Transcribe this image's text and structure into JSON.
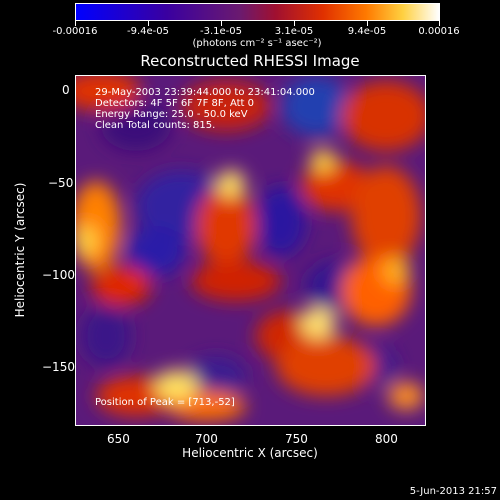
{
  "colorbar": {
    "labels": [
      "-0.00016",
      "-9.4e-05",
      "-3.1e-05",
      "3.1e-05",
      "9.4e-05",
      "0.00016"
    ],
    "units": "(photons cm⁻² s⁻¹ asec⁻²)"
  },
  "title": "Reconstructed RHESSI Image",
  "annotations": {
    "line1": "29-May-2003 23:39:44.000 to 23:41:04.000",
    "line2": "Detectors: 4F 5F 6F 7F 8F, Att 0",
    "line3": "Energy Range: 25.0 - 50.0 keV",
    "line4": "Clean     Total counts: 815.",
    "peak": "Position of Peak = [713,-52]"
  },
  "axes": {
    "xlabel": "Heliocentric X (arcsec)",
    "ylabel": "Heliocentric Y (arcsec)",
    "xticks": [
      "650",
      "700",
      "750",
      "800"
    ],
    "yticks": [
      "0",
      "−50",
      "−100",
      "−150"
    ]
  },
  "footer": "5-Jun-2013 21:57",
  "colors": {
    "background": "#000000",
    "foreground": "#ffffff"
  }
}
